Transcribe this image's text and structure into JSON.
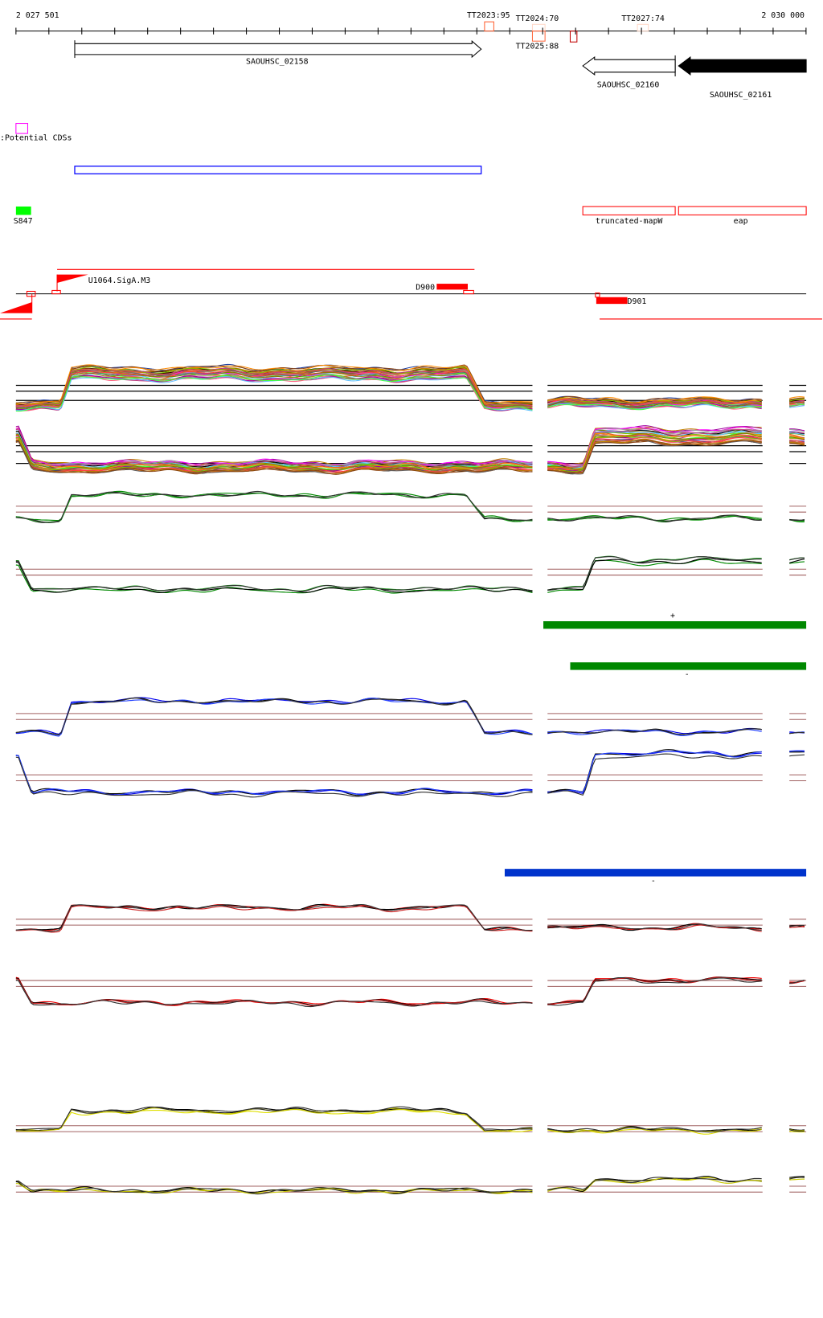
{
  "ruler": {
    "start_label": "2 027 501",
    "end_label": "2 030 000",
    "terminators": [
      {
        "label": "TT2023:95",
        "color": "#ff6030"
      },
      {
        "label": "TT2024:70",
        "color": "#ffd8c8"
      },
      {
        "label": "TT2025:88",
        "color": "#ff6a40"
      },
      {
        "label": "TT2027:74",
        "color": "#ffd8c8"
      }
    ],
    "unlabeled_box_color": "#c00000"
  },
  "genes": [
    {
      "label": "SAOUHSC_02158",
      "strand": "+",
      "fill": "#ffffff"
    },
    {
      "label": "SAOUHSC_02160",
      "strand": "-",
      "fill": "#ffffff"
    },
    {
      "label": "SAOUHSC_02161",
      "strand": "-",
      "fill": "#000000"
    }
  ],
  "potential_cds": {
    "label": ":Potential CDSs",
    "color": "#ff00ff",
    "box_color": "#0000ff"
  },
  "features": {
    "s847": {
      "label": "S847",
      "color": "#00ff00"
    },
    "truncated_mapw": {
      "label": "truncated-mapW",
      "color": "#ff0000"
    },
    "eap": {
      "label": "eap",
      "color": "#ff0000"
    }
  },
  "promoters": {
    "u1064": "U1064.SigA.M3",
    "d900": "D900",
    "d901": "D901",
    "color": "#ff0000"
  },
  "strand_bars": [
    {
      "label": "+",
      "color": "#008800"
    },
    {
      "label": "-",
      "color": "#008800"
    },
    {
      "label": "-",
      "color": "#0033cc"
    }
  ],
  "profile_colors": {
    "multi": [
      "#000000",
      "#e06020",
      "#c08000",
      "#a000a0",
      "#ff4040",
      "#60c0ff",
      "#80c000",
      "#c04080",
      "#40ff40",
      "#8b4513",
      "#ff8c00",
      "#808000",
      "#ff00ff",
      "#2040a0",
      "#a0a0a0",
      "#ff6080",
      "#b07040",
      "#606060"
    ],
    "green": [
      "#008800",
      "#000000",
      "#20a020",
      "#303030"
    ],
    "blue": [
      "#0000ee",
      "#000000",
      "#2040ff",
      "#303030"
    ],
    "red": [
      "#ee0000",
      "#000000",
      "#cc2020",
      "#303030"
    ],
    "yellow": [
      "#e0e000",
      "#000000",
      "#c8c800",
      "#303030"
    ],
    "ref_black": "#000000",
    "ref_brown": "#a06060"
  }
}
